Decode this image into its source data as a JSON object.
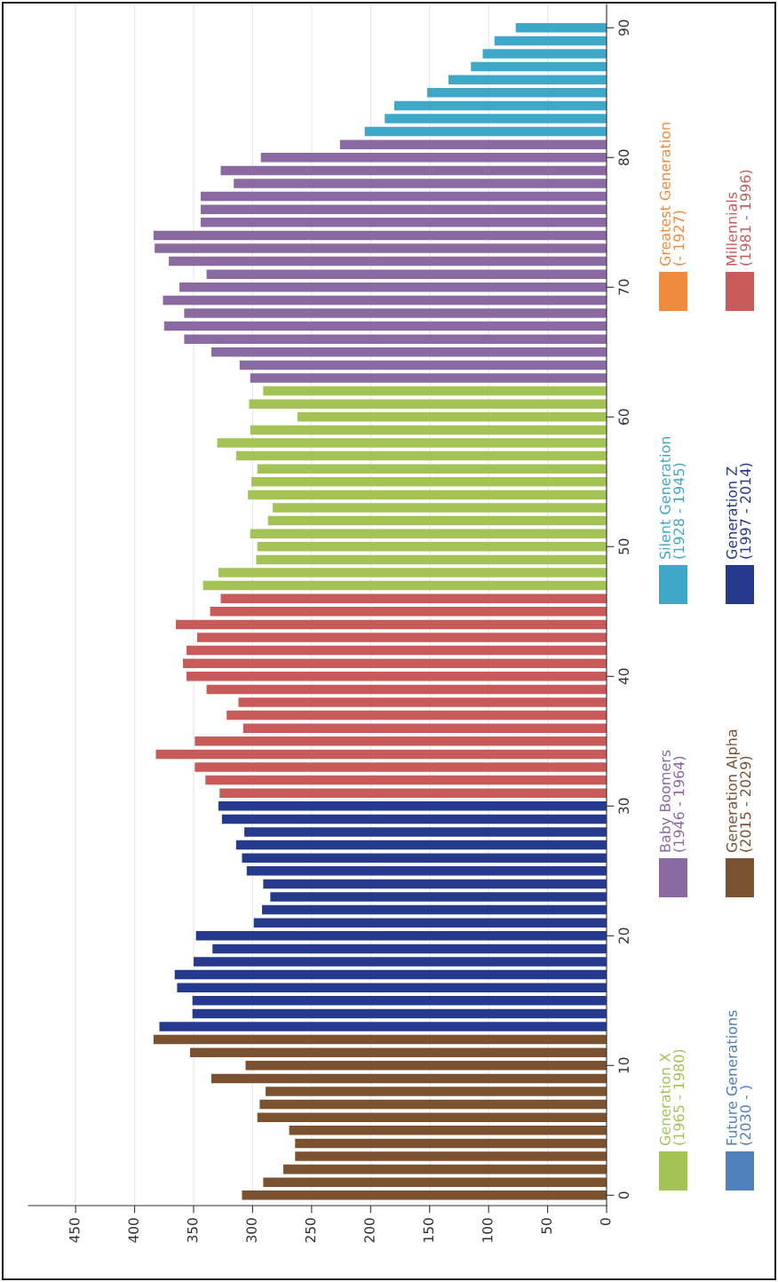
{
  "chart_data": {
    "type": "bar",
    "orientation": "horizontal",
    "categories": [
      "90",
      null,
      null,
      null,
      null,
      null,
      null,
      null,
      null,
      null,
      "80",
      null,
      null,
      null,
      null,
      null,
      null,
      null,
      null,
      null,
      "70",
      null,
      null,
      null,
      null,
      null,
      null,
      null,
      null,
      null,
      "60",
      null,
      null,
      null,
      null,
      null,
      null,
      null,
      null,
      null,
      "50",
      null,
      null,
      null,
      null,
      null,
      null,
      null,
      null,
      null,
      "40",
      null,
      null,
      null,
      null,
      null,
      null,
      null,
      null,
      null,
      "30",
      null,
      null,
      null,
      null,
      null,
      null,
      null,
      null,
      null,
      "20",
      null,
      null,
      null,
      null,
      null,
      null,
      null,
      null,
      null,
      "10",
      null,
      null,
      null,
      null,
      null,
      null,
      null,
      null,
      null,
      "0"
    ],
    "xlim": [
      490,
      0
    ],
    "xticks": [
      0,
      50,
      100,
      150,
      200,
      250,
      300,
      350,
      400,
      450
    ],
    "grid": "x",
    "legend": "right",
    "series": [
      {
        "name": "Generation X\n(1965 - 1980)",
        "color": "#a3c455",
        "values": [
          null,
          null,
          null,
          null,
          null,
          null,
          null,
          null,
          null,
          null,
          null,
          null,
          null,
          null,
          null,
          null,
          null,
          null,
          null,
          null,
          null,
          null,
          null,
          null,
          null,
          null,
          null,
          null,
          291,
          303,
          262,
          302,
          330,
          314,
          296,
          301,
          304,
          283,
          287,
          302,
          296,
          297,
          329,
          342,
          null,
          null,
          null,
          null,
          null,
          null,
          null,
          null,
          null,
          null,
          null,
          null,
          null,
          null,
          null,
          null,
          null,
          null,
          null,
          null,
          null,
          null,
          null,
          null,
          null,
          null,
          null,
          null,
          null,
          null,
          null,
          null,
          null,
          null,
          null,
          null,
          null,
          null,
          null,
          null,
          null,
          null,
          null,
          null,
          null,
          null,
          null
        ]
      },
      {
        "name": "Baby Boomers\n(1946 - 1964)",
        "color": "#8a6aa0",
        "values": [
          null,
          null,
          null,
          null,
          null,
          null,
          null,
          null,
          null,
          226,
          293,
          327,
          316,
          344,
          344,
          344,
          384,
          383,
          371,
          339,
          362,
          376,
          358,
          375,
          358,
          335,
          311,
          302,
          null,
          null,
          null,
          null,
          null,
          null,
          null,
          null,
          null,
          null,
          null,
          null,
          null,
          null,
          null,
          null,
          null,
          null,
          null,
          null,
          null,
          null,
          null,
          null,
          null,
          null,
          null,
          null,
          null,
          null,
          null,
          null,
          null,
          null,
          null,
          null,
          null,
          null,
          null,
          null,
          null,
          null,
          null,
          null,
          null,
          null,
          null,
          null,
          null,
          null,
          null,
          null,
          null,
          null,
          null,
          null,
          null,
          null,
          null,
          null,
          null,
          null,
          null
        ]
      },
      {
        "name": "Silent Generation\n(1928 - 1945)",
        "color": "#3fa8c8",
        "values": [
          77,
          95,
          105,
          115,
          134,
          152,
          180,
          188,
          205,
          null,
          null,
          null,
          null,
          null,
          null,
          null,
          null,
          null,
          null,
          null,
          null,
          null,
          null,
          null,
          null,
          null,
          null,
          null,
          null,
          null,
          null,
          null,
          null,
          null,
          null,
          null,
          null,
          null,
          null,
          null,
          null,
          null,
          null,
          null,
          null,
          null,
          null,
          null,
          null,
          null,
          null,
          null,
          null,
          null,
          null,
          null,
          null,
          null,
          null,
          null,
          null,
          null,
          null,
          null,
          null,
          null,
          null,
          null,
          null,
          null,
          null,
          null,
          null,
          null,
          null,
          null,
          null,
          null,
          null,
          null,
          null,
          null,
          null,
          null,
          null,
          null,
          null,
          null,
          null,
          null,
          null
        ]
      },
      {
        "name": "Greatest Generation\n(- 1927)",
        "color": "#f08a3c",
        "values": [
          null,
          null,
          null,
          null,
          null,
          null,
          null,
          null,
          null,
          null,
          null,
          null,
          null,
          null,
          null,
          null,
          null,
          null,
          null,
          null,
          null,
          null,
          null,
          null,
          null,
          null,
          null,
          null,
          null,
          null,
          null,
          null,
          null,
          null,
          null,
          null,
          null,
          null,
          null,
          null,
          null,
          null,
          null,
          null,
          null,
          null,
          null,
          null,
          null,
          null,
          null,
          null,
          null,
          null,
          null,
          null,
          null,
          null,
          null,
          null,
          null,
          null,
          null,
          null,
          null,
          null,
          null,
          null,
          null,
          null,
          null,
          null,
          null,
          null,
          null,
          null,
          null,
          null,
          null,
          null,
          null,
          null,
          null,
          null,
          null,
          null,
          null,
          null,
          null,
          null,
          null
        ]
      },
      {
        "name": "Future Generations\n(2030 - )",
        "color": "#4f81bd",
        "values": [
          null,
          null,
          null,
          null,
          null,
          null,
          null,
          null,
          null,
          null,
          null,
          null,
          null,
          null,
          null,
          null,
          null,
          null,
          null,
          null,
          null,
          null,
          null,
          null,
          null,
          null,
          null,
          null,
          null,
          null,
          null,
          null,
          null,
          null,
          null,
          null,
          null,
          null,
          null,
          null,
          null,
          null,
          null,
          null,
          null,
          null,
          null,
          null,
          null,
          null,
          null,
          null,
          null,
          null,
          null,
          null,
          null,
          null,
          null,
          null,
          null,
          null,
          null,
          null,
          null,
          null,
          null,
          null,
          null,
          null,
          null,
          null,
          null,
          null,
          null,
          null,
          null,
          null,
          null,
          null,
          null,
          null,
          null,
          null,
          null,
          null,
          null,
          null,
          null,
          null,
          null
        ]
      },
      {
        "name": "Generation Alpha\n(2015 - 2029)",
        "color": "#7b5230",
        "values": [
          null,
          null,
          null,
          null,
          null,
          null,
          null,
          null,
          null,
          null,
          null,
          null,
          null,
          null,
          null,
          null,
          null,
          null,
          null,
          null,
          null,
          null,
          null,
          null,
          null,
          null,
          null,
          null,
          null,
          null,
          null,
          null,
          null,
          null,
          null,
          null,
          null,
          null,
          null,
          null,
          null,
          null,
          null,
          null,
          null,
          null,
          null,
          null,
          null,
          null,
          null,
          null,
          null,
          null,
          null,
          null,
          null,
          null,
          null,
          null,
          null,
          null,
          null,
          null,
          null,
          null,
          null,
          null,
          null,
          null,
          null,
          null,
          null,
          null,
          null,
          null,
          null,
          null,
          384,
          353,
          306,
          335,
          289,
          294,
          296,
          269,
          264,
          264,
          274,
          291,
          309
        ]
      },
      {
        "name": "Generation Z\n(1997 - 2014)",
        "color": "#253a8c",
        "values": [
          null,
          null,
          null,
          null,
          null,
          null,
          null,
          null,
          null,
          null,
          null,
          null,
          null,
          null,
          null,
          null,
          null,
          null,
          null,
          null,
          null,
          null,
          null,
          null,
          null,
          null,
          null,
          null,
          null,
          null,
          null,
          null,
          null,
          null,
          null,
          null,
          null,
          null,
          null,
          null,
          null,
          null,
          null,
          null,
          null,
          null,
          null,
          null,
          null,
          null,
          null,
          null,
          null,
          null,
          null,
          null,
          null,
          null,
          null,
          null,
          329,
          326,
          307,
          314,
          309,
          305,
          291,
          285,
          292,
          299,
          348,
          334,
          350,
          366,
          364,
          351,
          351,
          379,
          null,
          null,
          null,
          null,
          null,
          null,
          null,
          null,
          null,
          null,
          null,
          null,
          null
        ]
      },
      {
        "name": "Millennials\n(1981 - 1996)",
        "color": "#c85a5a",
        "values": [
          null,
          null,
          null,
          null,
          null,
          null,
          null,
          null,
          null,
          null,
          null,
          null,
          null,
          null,
          null,
          null,
          null,
          null,
          null,
          null,
          null,
          null,
          null,
          null,
          null,
          null,
          null,
          null,
          null,
          null,
          null,
          null,
          null,
          null,
          null,
          null,
          null,
          null,
          null,
          null,
          null,
          null,
          null,
          null,
          327,
          336,
          365,
          347,
          356,
          359,
          356,
          339,
          312,
          322,
          308,
          349,
          382,
          349,
          340,
          328,
          null,
          null,
          null,
          null,
          null,
          null,
          null,
          null,
          null,
          null,
          null,
          null,
          null,
          null,
          null,
          null,
          null,
          null,
          null,
          null,
          null,
          null,
          null,
          null,
          null,
          null,
          null,
          null,
          null,
          null,
          null
        ]
      }
    ]
  }
}
